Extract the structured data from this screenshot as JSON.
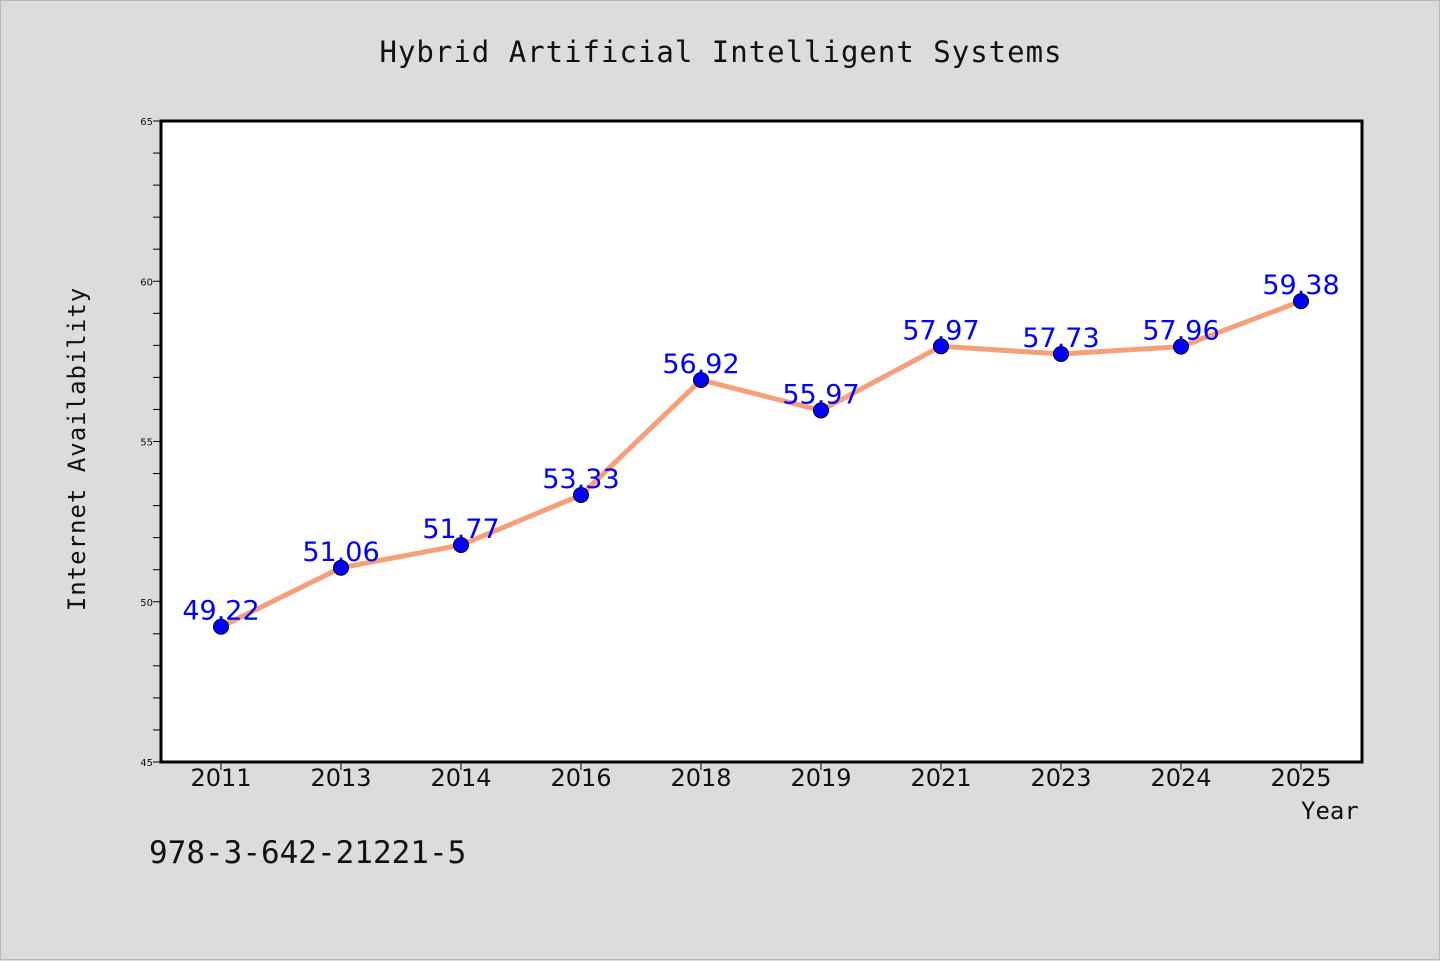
{
  "title": "Hybrid Artificial Intelligent Systems",
  "footer_text": "978-3-642-21221-5",
  "colors": {
    "background": "#dcdcdc",
    "plot_background": "#ffffff",
    "line": "#f5a07a",
    "marker": "#0000ff",
    "data_label": "#0000ff"
  },
  "chart_data": {
    "type": "line",
    "title": "Hybrid Artificial Intelligent Systems",
    "xlabel": "Year",
    "ylabel": "Internet Availability",
    "categories": [
      "2011",
      "2013",
      "2014",
      "2016",
      "2018",
      "2019",
      "2021",
      "2023",
      "2024",
      "2025"
    ],
    "series": [
      {
        "values": [
          49.22,
          51.06,
          51.77,
          53.33,
          56.92,
          55.97,
          57.97,
          57.73,
          57.96,
          59.38
        ],
        "labels": [
          "49.22",
          "51.06",
          "51.77",
          "53.33",
          "56.92",
          "55.97",
          "57.97",
          "57.73",
          "57.96",
          "59.38"
        ]
      }
    ],
    "ylim": [
      45,
      65
    ],
    "yticks": [
      45,
      50,
      55,
      60,
      65
    ],
    "grid": false,
    "marker": "circle"
  }
}
